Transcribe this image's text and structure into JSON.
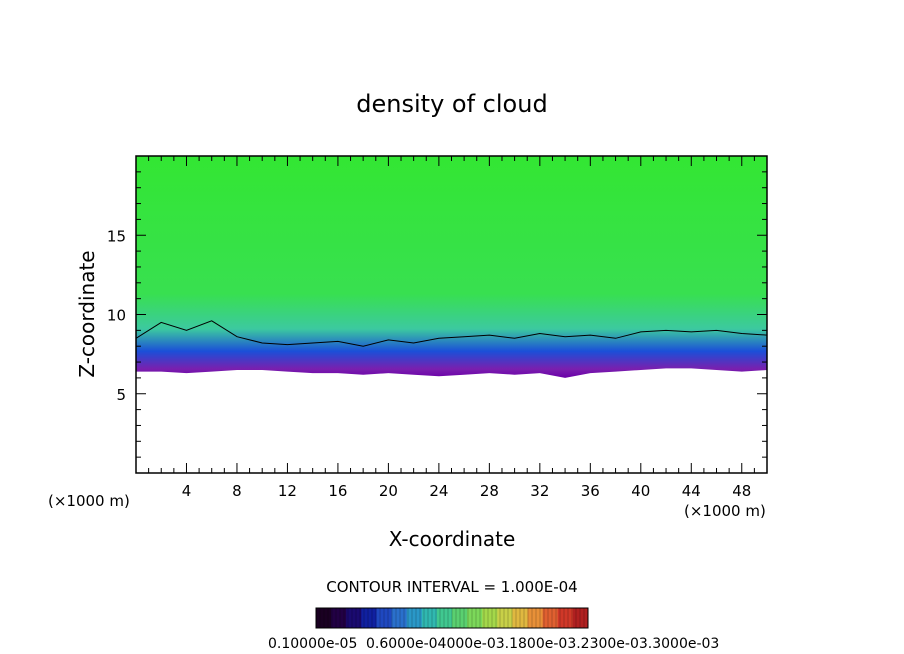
{
  "chart_data": {
    "type": "heatmap",
    "title": "density of cloud",
    "xlabel": "X-coordinate",
    "ylabel": "Z-coordinate",
    "x_unit_label_left": "(×1000 m)",
    "x_unit_label_right": "(×1000 m)",
    "xlim": [
      0,
      50
    ],
    "ylim": [
      0,
      20
    ],
    "x_ticks": [
      4,
      8,
      12,
      16,
      20,
      24,
      28,
      32,
      36,
      40,
      44,
      48
    ],
    "y_ticks": [
      5,
      10,
      15
    ],
    "contour_interval_text": "CONTOUR INTERVAL = 1.000E-04",
    "colorbar_labels_text": "0.10000e-05",
    "colorbar_overlap_text": "0.6000e-04000e-03.1800e-03.2300e-03.3000e-03",
    "colors": {
      "top": "#33e633",
      "mid": "#3cc9a0",
      "low": "#1b4fd8",
      "base": "#7a1fae",
      "bottom_edge": "#6a00a8"
    },
    "cloud_base_km": 6.5,
    "cloud_top_km": 20,
    "profile": [
      {
        "x": 0,
        "base": 6.4,
        "contour": 8.5
      },
      {
        "x": 2,
        "base": 6.4,
        "contour": 9.5
      },
      {
        "x": 4,
        "base": 6.3,
        "contour": 9.0
      },
      {
        "x": 6,
        "base": 6.4,
        "contour": 9.6
      },
      {
        "x": 8,
        "base": 6.5,
        "contour": 8.6
      },
      {
        "x": 10,
        "base": 6.5,
        "contour": 8.2
      },
      {
        "x": 12,
        "base": 6.4,
        "contour": 8.1
      },
      {
        "x": 14,
        "base": 6.3,
        "contour": 8.2
      },
      {
        "x": 16,
        "base": 6.3,
        "contour": 8.3
      },
      {
        "x": 18,
        "base": 6.2,
        "contour": 8.0
      },
      {
        "x": 20,
        "base": 6.3,
        "contour": 8.4
      },
      {
        "x": 22,
        "base": 6.2,
        "contour": 8.2
      },
      {
        "x": 24,
        "base": 6.1,
        "contour": 8.5
      },
      {
        "x": 26,
        "base": 6.2,
        "contour": 8.6
      },
      {
        "x": 28,
        "base": 6.3,
        "contour": 8.7
      },
      {
        "x": 30,
        "base": 6.2,
        "contour": 8.5
      },
      {
        "x": 32,
        "base": 6.3,
        "contour": 8.8
      },
      {
        "x": 34,
        "base": 6.0,
        "contour": 8.6
      },
      {
        "x": 36,
        "base": 6.3,
        "contour": 8.7
      },
      {
        "x": 38,
        "base": 6.4,
        "contour": 8.5
      },
      {
        "x": 40,
        "base": 6.5,
        "contour": 8.9
      },
      {
        "x": 42,
        "base": 6.6,
        "contour": 9.0
      },
      {
        "x": 44,
        "base": 6.6,
        "contour": 8.9
      },
      {
        "x": 46,
        "base": 6.5,
        "contour": 9.0
      },
      {
        "x": 48,
        "base": 6.4,
        "contour": 8.8
      },
      {
        "x": 50,
        "base": 6.5,
        "contour": 8.7
      }
    ],
    "colorbar_colors": [
      "#1a0022",
      "#220044",
      "#1a0a70",
      "#1020a0",
      "#1f48c0",
      "#2a70cc",
      "#2a98c8",
      "#30b8b0",
      "#40c890",
      "#5ad070",
      "#7cd85a",
      "#a4d84a",
      "#c8d048",
      "#e0b840",
      "#e89038",
      "#e06030",
      "#d03828",
      "#b02020"
    ]
  }
}
